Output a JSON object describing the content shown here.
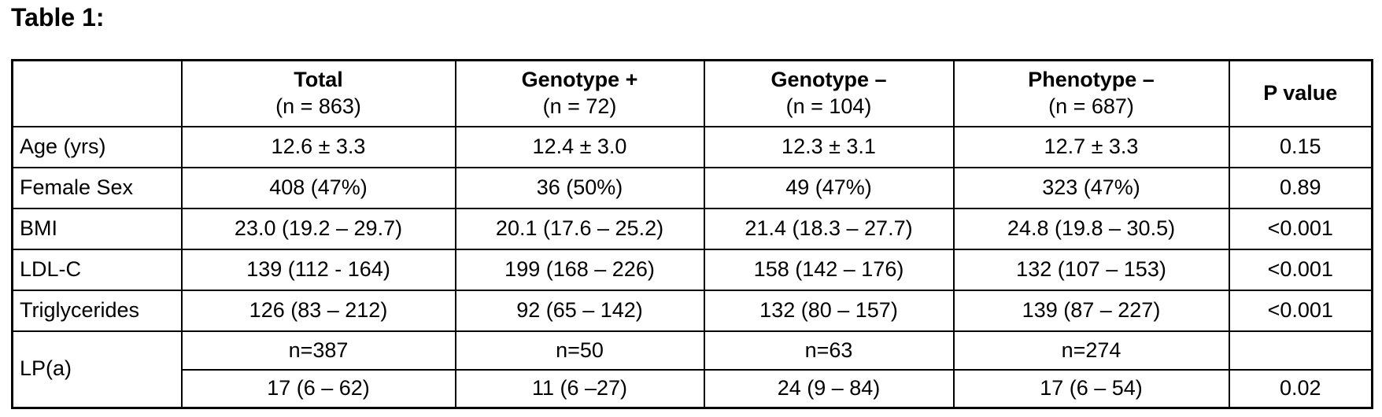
{
  "page": {
    "background_color": "#ffffff",
    "text_color": "#000000",
    "border_color": "#000000"
  },
  "title": "Table 1:",
  "table": {
    "header": [
      {
        "label": "",
        "sub": ""
      },
      {
        "label": "Total",
        "sub": "(n = 863)"
      },
      {
        "label": "Genotype +",
        "sub": "(n = 72)"
      },
      {
        "label": "Genotype –",
        "sub": "(n = 104)"
      },
      {
        "label": "Phenotype –",
        "sub": "(n = 687)"
      },
      {
        "label": "P value",
        "sub": ""
      }
    ],
    "rows": [
      {
        "label": "Age (yrs)",
        "values": [
          "12.6 ± 3.3",
          "12.4 ± 3.0",
          "12.3 ± 3.1",
          "12.7 ± 3.3"
        ],
        "p": "0.15"
      },
      {
        "label": "Female Sex",
        "values": [
          "408 (47%)",
          "36 (50%)",
          "49 (47%)",
          "323 (47%)"
        ],
        "p": "0.89"
      },
      {
        "label": "BMI",
        "values": [
          "23.0 (19.2 – 29.7)",
          "20.1 (17.6 – 25.2)",
          "21.4 (18.3 – 27.7)",
          "24.8 (19.8 – 30.5)"
        ],
        "p": "<0.001"
      },
      {
        "label": "LDL-C",
        "values": [
          "139 (112 - 164)",
          "199 (168 – 226)",
          "158 (142 – 176)",
          "132 (107 – 153)"
        ],
        "p": "<0.001"
      },
      {
        "label": "Triglycerides",
        "values": [
          "126 (83 – 212)",
          "92 (65 – 142)",
          "132 (80 – 157)",
          "139 (87 – 227)"
        ],
        "p": "<0.001"
      }
    ],
    "lpa_row": {
      "label": "LP(a)",
      "subrow1": {
        "values": [
          "n=387",
          "n=50",
          "n=63",
          "n=274"
        ],
        "p": ""
      },
      "subrow2": {
        "values": [
          "17 (6 – 62)",
          "11 (6 –27)",
          "24 (9 – 84)",
          "17 (6 – 54)"
        ],
        "p": "0.02"
      }
    }
  }
}
